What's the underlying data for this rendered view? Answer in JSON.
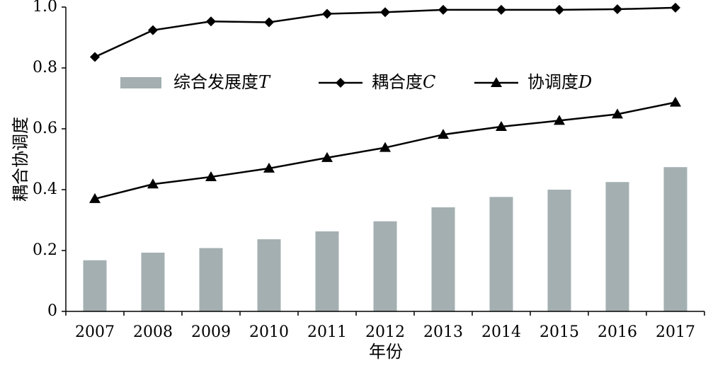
{
  "chart_data": {
    "type": "bar",
    "title": "",
    "xlabel": "年份",
    "ylabel": "耦合协调度",
    "categories": [
      "2007",
      "2008",
      "2009",
      "2010",
      "2011",
      "2012",
      "2013",
      "2014",
      "2015",
      "2016",
      "2017"
    ],
    "ylim": [
      0,
      1.0
    ],
    "yticks": [
      "0",
      "0.2",
      "0.4",
      "0.6",
      "0.8",
      "1.0"
    ],
    "ytick_values": [
      0,
      0.2,
      0.4,
      0.6,
      0.8,
      1.0
    ],
    "grid": false,
    "legend_position": "top-right",
    "series": [
      {
        "name": "综合发展度",
        "symbol": "T",
        "type": "bar",
        "color": "#a3afb1",
        "values": [
          0.168,
          0.193,
          0.208,
          0.237,
          0.263,
          0.296,
          0.342,
          0.376,
          0.4,
          0.425,
          0.474
        ]
      },
      {
        "name": "耦合度",
        "symbol": "C",
        "type": "line",
        "marker": "diamond",
        "color": "#000000",
        "values": [
          0.836,
          0.924,
          0.953,
          0.95,
          0.978,
          0.983,
          0.991,
          0.991,
          0.991,
          0.993,
          0.998
        ]
      },
      {
        "name": "协调度",
        "symbol": "D",
        "type": "line",
        "marker": "triangle",
        "color": "#000000",
        "values": [
          0.37,
          0.418,
          0.442,
          0.47,
          0.505,
          0.538,
          0.581,
          0.607,
          0.627,
          0.648,
          0.687
        ]
      }
    ]
  }
}
